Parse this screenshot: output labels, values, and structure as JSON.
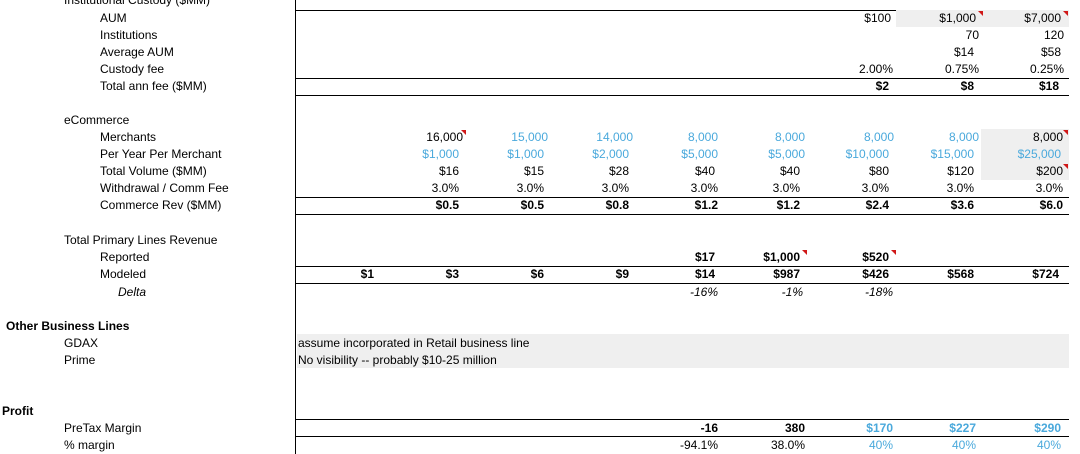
{
  "colors": {
    "input_blue": "#4aa9dc",
    "shade": "#efefef",
    "comment_flag": "#d01818"
  },
  "sections": {
    "custody_header": "Institutional Custody ($MM)",
    "ecommerce_header": "eCommerce",
    "total_header": "Total Primary Lines Revenue",
    "other_header": "Other Business Lines",
    "profit_header": "Profit"
  },
  "custody": {
    "aum": {
      "label": "AUM",
      "values": [
        "$100",
        "$1,000",
        "$7,000"
      ]
    },
    "institutions": {
      "label": "Institutions",
      "values": [
        "70",
        "120"
      ]
    },
    "avg_aum": {
      "label": "Average AUM",
      "values": [
        "$14",
        "$58"
      ]
    },
    "fee": {
      "label": "Custody fee",
      "values": [
        "2.00%",
        "0.75%",
        "0.25%"
      ]
    },
    "total": {
      "label": "Total ann fee ($MM)",
      "values": [
        "$2",
        "$8",
        "$18"
      ]
    }
  },
  "ecommerce": {
    "merchants": {
      "label": "Merchants",
      "values": [
        "16,000",
        "15,000",
        "14,000",
        "8,000",
        "8,000",
        "8,000",
        "8,000",
        "8,000"
      ]
    },
    "per_year": {
      "label": "Per Year Per Merchant",
      "values": [
        "$1,000",
        "$1,000",
        "$2,000",
        "$5,000",
        "$5,000",
        "$10,000",
        "$15,000",
        "$25,000"
      ]
    },
    "volume": {
      "label": "Total Volume ($MM)",
      "values": [
        "$16",
        "$15",
        "$28",
        "$40",
        "$40",
        "$80",
        "$120",
        "$200"
      ]
    },
    "fee": {
      "label": "Withdrawal / Comm Fee",
      "values": [
        "3.0%",
        "3.0%",
        "3.0%",
        "3.0%",
        "3.0%",
        "3.0%",
        "3.0%",
        "3.0%"
      ]
    },
    "rev": {
      "label": "Commerce Rev ($MM)",
      "values": [
        "$0.5",
        "$0.5",
        "$0.8",
        "$1.2",
        "$1.2",
        "$2.4",
        "$3.6",
        "$6.0"
      ]
    }
  },
  "total": {
    "reported": {
      "label": "Reported",
      "values": [
        "$17",
        "$1,000",
        "$520"
      ]
    },
    "modeled": {
      "label": "Modeled",
      "values": [
        "$1",
        "$3",
        "$6",
        "$9",
        "$14",
        "$987",
        "$426",
        "$568",
        "$724"
      ]
    },
    "delta": {
      "label": "Delta",
      "values": [
        "-16%",
        "-1%",
        "-18%"
      ]
    }
  },
  "other": {
    "gdax": {
      "label": "GDAX",
      "note": "assume incorporated in Retail business line"
    },
    "prime": {
      "label": "Prime",
      "note": "No visibility -- probably $10-25 million"
    }
  },
  "profit": {
    "pretax": {
      "label": "PreTax Margin",
      "values": [
        "-16",
        "380",
        "$170",
        "$227",
        "$290"
      ]
    },
    "margin": {
      "label": "% margin",
      "values": [
        "-94.1%",
        "38.0%",
        "40%",
        "40%",
        "40%"
      ]
    }
  }
}
